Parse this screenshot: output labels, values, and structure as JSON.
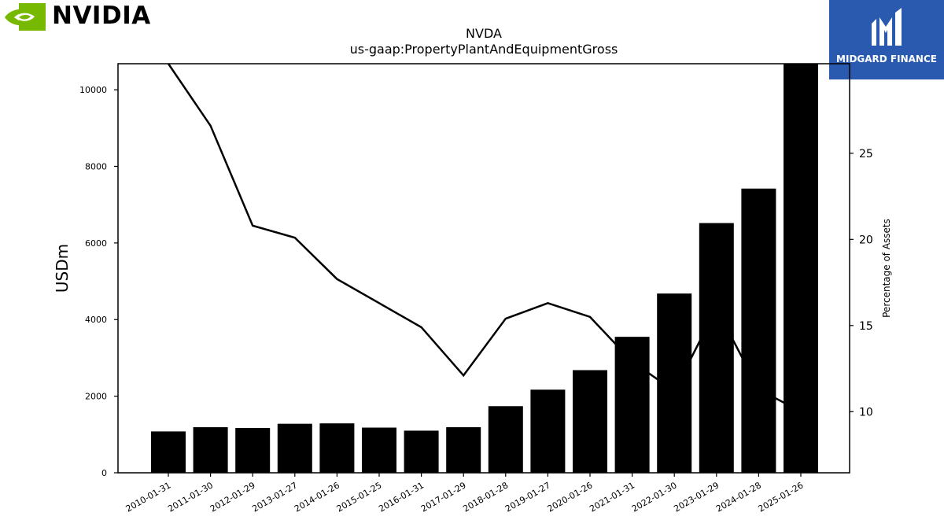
{
  "logos": {
    "left_brand": "NVIDIA",
    "right_brand": "MIDGARD FINANCE"
  },
  "chart_data": {
    "type": "bar",
    "title": "NVDA",
    "subtitle": "us-gaap:PropertyPlantAndEquipmentGross",
    "ylabel": "USDm",
    "y2label": "Percentage of Assets",
    "categories": [
      "2010-01-31",
      "2011-01-30",
      "2012-01-29",
      "2013-01-27",
      "2014-01-26",
      "2015-01-25",
      "2016-01-31",
      "2017-01-29",
      "2018-01-28",
      "2019-01-27",
      "2020-01-26",
      "2021-01-31",
      "2022-01-30",
      "2023-01-29",
      "2024-01-28",
      "2025-01-26"
    ],
    "ylim": [
      0,
      10680
    ],
    "y2lim": [
      6.45,
      30.2
    ],
    "yticks": [
      0,
      2000,
      4000,
      6000,
      8000,
      10000
    ],
    "y2ticks": [
      10,
      15,
      20,
      25
    ],
    "series": [
      {
        "type": "bar",
        "values": [
          1080,
          1190,
          1170,
          1280,
          1290,
          1180,
          1100,
          1190,
          1740,
          2170,
          2680,
          3550,
          4680,
          6520,
          7420,
          10680
        ]
      },
      {
        "type": "line",
        "axis": "right",
        "values": [
          30.2,
          26.6,
          20.8,
          20.1,
          17.7,
          16.3,
          14.9,
          12.1,
          15.4,
          16.3,
          15.5,
          12.9,
          11.2,
          16.0,
          11.3,
          10.0
        ]
      }
    ],
    "grid": false,
    "colors": {
      "bar": "#000000",
      "line": "#000000"
    }
  }
}
